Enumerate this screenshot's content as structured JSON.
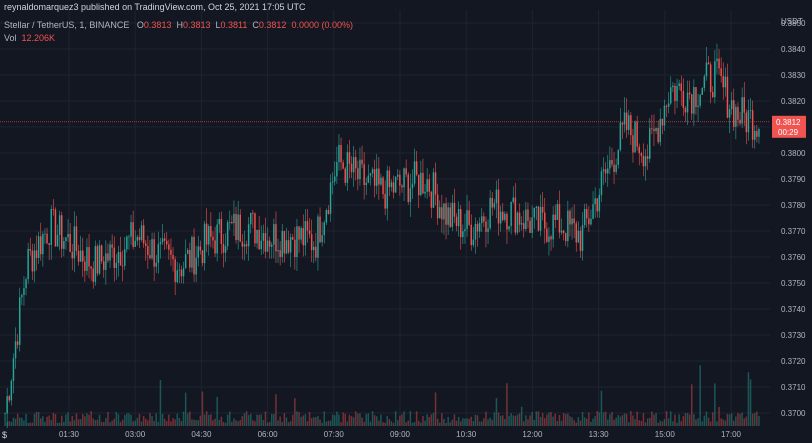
{
  "header": {
    "publisher_line": "reynaldomarquez3 published on TradingView.com, Oct 25, 2021 17:05 UTC",
    "symbol": "Stellar / TetherUS, 1, BINANCE",
    "o_label": "O",
    "o_value": "0.3813",
    "h_label": "H",
    "h_value": "0.3813",
    "l_label": "L",
    "l_value": "0.3811",
    "c_label": "C",
    "c_value": "0.3812",
    "change": "0.0000 (0.00%)",
    "vol_label": "Vol",
    "vol_value": "12.206K"
  },
  "price_axis": {
    "currency": "USDT",
    "ticks": [
      "0.3850",
      "0.3840",
      "0.3830",
      "0.3820",
      "0.3810",
      "0.3800",
      "0.3790",
      "0.3780",
      "0.3770",
      "0.3760",
      "0.3750",
      "0.3740",
      "0.3730",
      "0.3720",
      "0.3710",
      "0.3700"
    ],
    "last_price": "0.3812",
    "countdown": "00:29"
  },
  "time_axis": {
    "ticks": [
      "01:30",
      "03:00",
      "04:30",
      "06:00",
      "07:30",
      "09:00",
      "10:30",
      "12:00",
      "13:30",
      "15:00",
      "17:00"
    ]
  },
  "colors": {
    "background": "#131722",
    "grid": "#1f2330",
    "up": "#26a69a",
    "down": "#ef5350",
    "axis_text": "#b2b5be",
    "last_price_bg": "#f05350"
  },
  "chart_data": {
    "type": "candlestick",
    "x": [
      "00:00",
      "00:30",
      "01:00",
      "01:30",
      "02:00",
      "02:30",
      "03:00",
      "03:30",
      "04:00",
      "04:30",
      "05:00",
      "05:30",
      "06:00",
      "06:30",
      "07:00",
      "07:30",
      "08:00",
      "08:30",
      "09:00",
      "09:30",
      "10:00",
      "10:30",
      "11:00",
      "11:30",
      "12:00",
      "12:30",
      "13:00",
      "13:30",
      "14:00",
      "14:30",
      "15:00",
      "15:30",
      "16:00",
      "16:30",
      "17:00"
    ],
    "close": [
      0.37,
      0.3758,
      0.3772,
      0.3765,
      0.3757,
      0.3762,
      0.3768,
      0.376,
      0.3757,
      0.3765,
      0.377,
      0.3772,
      0.3768,
      0.3768,
      0.3766,
      0.3797,
      0.379,
      0.3785,
      0.3788,
      0.379,
      0.3775,
      0.3771,
      0.378,
      0.3777,
      0.3772,
      0.3773,
      0.3768,
      0.379,
      0.381,
      0.38,
      0.3825,
      0.3823,
      0.383,
      0.3815,
      0.3812
    ],
    "ylim": [
      0.3695,
      0.3855
    ],
    "grid": true
  }
}
